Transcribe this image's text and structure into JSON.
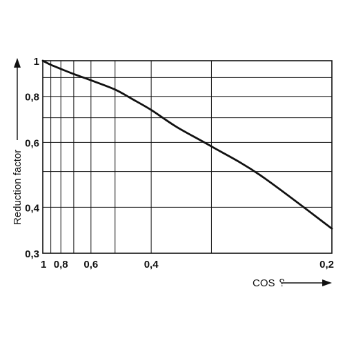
{
  "chart_data": {
    "type": "line",
    "title": "",
    "ylabel": "Reduction factor",
    "xlabel": "COS ␦",
    "x_scale": "reciprocal",
    "y_scale": "log",
    "xlim": [
      1,
      0.2
    ],
    "ylim": [
      0.3,
      1
    ],
    "grid": true,
    "x_ticks": [
      {
        "value": 1,
        "label": "1"
      },
      {
        "value": 0.8,
        "label": "0,8"
      },
      {
        "value": 0.6,
        "label": "0,6"
      },
      {
        "value": 0.4,
        "label": "0,4"
      },
      {
        "value": 0.2,
        "label": "0,2"
      }
    ],
    "x_gridlines": [
      0.9,
      0.8,
      0.7,
      0.6,
      0.5,
      0.4,
      0.3
    ],
    "y_ticks": [
      {
        "value": 1,
        "label": "1"
      },
      {
        "value": 0.8,
        "label": "0,8"
      },
      {
        "value": 0.6,
        "label": "0,6"
      },
      {
        "value": 0.4,
        "label": "0,4"
      },
      {
        "value": 0.3,
        "label": "0,3"
      }
    ],
    "y_gridlines": [
      0.9,
      0.8,
      0.7,
      0.6,
      0.5,
      0.4
    ],
    "series": [
      {
        "color": "#111111",
        "x": [
          1,
          0.9,
          0.8,
          0.7,
          0.6,
          0.5,
          0.45,
          0.4,
          0.35,
          0.3,
          0.25,
          0.2
        ],
        "y": [
          1,
          0.975,
          0.95,
          0.92,
          0.885,
          0.835,
          0.79,
          0.735,
          0.66,
          0.585,
          0.49,
          0.35
        ]
      }
    ]
  }
}
